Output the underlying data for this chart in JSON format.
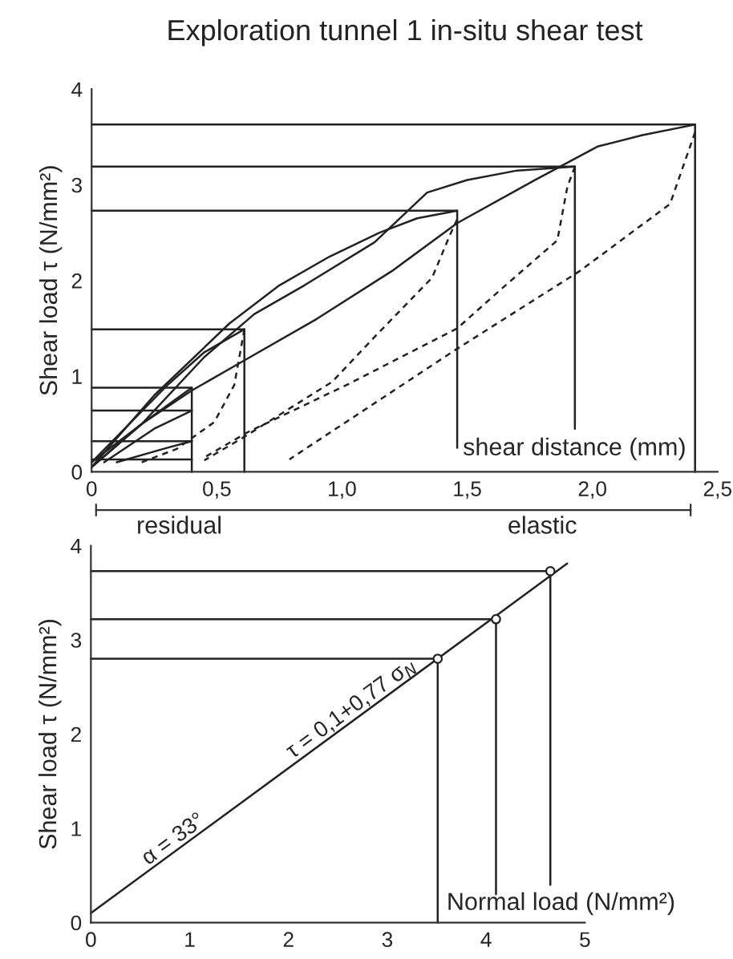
{
  "chart_data": [
    {
      "type": "line",
      "title": "Exploration tunnel 1 in-situ shear test",
      "xlabel": "shear distance (mm)",
      "ylabel": "Shear load τ (N/mm²)",
      "xlim": [
        0,
        2.5
      ],
      "ylim": [
        0,
        4
      ],
      "xticks": [
        0,
        {
          "value": 0.5,
          "label": "0,5"
        },
        {
          "value": 1.0,
          "label": "1,0"
        },
        {
          "value": 1.5,
          "label": "1,5"
        },
        {
          "value": 2.0,
          "label": "2,0"
        },
        {
          "value": 2.5,
          "label": "2,5"
        }
      ],
      "yticks": [
        0,
        1,
        2,
        3,
        4
      ],
      "annotations": [
        "residual",
        "elastic"
      ],
      "series": [
        {
          "line_style": "solid",
          "color": "#222222",
          "x": [
            0,
            2.41,
            2.41
          ],
          "values": [
            3.63,
            3.63,
            0
          ]
        },
        {
          "type": "line",
          "line_style": "solid",
          "color": "#222222",
          "x": [
            0,
            1.93,
            1.93
          ],
          "values": [
            3.19,
            3.19,
            0.45
          ]
        },
        {
          "type": "line",
          "line_style": "solid",
          "color": "#222222",
          "x": [
            0,
            1.46,
            1.46
          ],
          "values": [
            2.73,
            2.73,
            0.25
          ]
        },
        {
          "type": "line",
          "line_style": "solid",
          "color": "#222222",
          "x": [
            0,
            0.61,
            0.61
          ],
          "values": [
            1.49,
            1.49,
            0
          ]
        },
        {
          "type": "line",
          "line_style": "solid",
          "color": "#222222",
          "x": [
            0,
            0.4,
            0.4
          ],
          "values": [
            0.88,
            0.88,
            0
          ]
        },
        {
          "type": "line",
          "line_style": "solid",
          "color": "#222222",
          "x": [
            0,
            0.4
          ],
          "values": [
            0.64,
            0.64
          ]
        },
        {
          "type": "line",
          "line_style": "solid",
          "color": "#222222",
          "x": [
            0,
            0.4
          ],
          "values": [
            0.32,
            0.32
          ]
        },
        {
          "type": "line",
          "line_style": "solid",
          "color": "#222222",
          "x": [
            0,
            0.4
          ],
          "values": [
            0.13,
            0.13
          ]
        },
        {
          "type": "line",
          "line_style": "solid",
          "color": "#222222",
          "x": [
            0,
            0.2,
            0.4,
            0.6,
            0.9,
            1.2,
            1.46,
            1.77,
            2.02,
            2.2,
            2.41
          ],
          "values": [
            0.05,
            0.5,
            0.85,
            1.15,
            1.6,
            2.1,
            2.6,
            3.05,
            3.4,
            3.52,
            3.63
          ]
        },
        {
          "type": "line",
          "line_style": "solid",
          "color": "#222222",
          "x": [
            0,
            0.2,
            0.45,
            0.65,
            0.85,
            1.13,
            1.34,
            1.5,
            1.7,
            1.93
          ],
          "values": [
            0.1,
            0.5,
            1.2,
            1.65,
            1.95,
            2.4,
            2.92,
            3.05,
            3.15,
            3.19
          ]
        },
        {
          "type": "line",
          "line_style": "solid",
          "color": "#222222",
          "x": [
            0,
            0.25,
            0.55,
            0.75,
            0.95,
            1.15,
            1.3,
            1.46
          ],
          "values": [
            0.05,
            0.8,
            1.55,
            1.95,
            2.25,
            2.5,
            2.65,
            2.73
          ]
        },
        {
          "type": "line",
          "line_style": "solid",
          "color": "#222222",
          "x": [
            0,
            0.15,
            0.3,
            0.45,
            0.61
          ],
          "values": [
            0.1,
            0.5,
            0.9,
            1.25,
            1.49
          ]
        },
        {
          "type": "line",
          "line_style": "solid",
          "color": "#222222",
          "x": [
            0,
            0.2,
            0.4
          ],
          "values": [
            0.05,
            0.5,
            0.88
          ]
        },
        {
          "type": "line",
          "line_style": "solid",
          "color": "#222222",
          "x": [
            0.05,
            0.25,
            0.4
          ],
          "values": [
            0.1,
            0.45,
            0.64
          ]
        },
        {
          "type": "line",
          "line_style": "solid",
          "color": "#222222",
          "x": [
            0.1,
            0.3,
            0.4
          ],
          "values": [
            0.1,
            0.25,
            0.32
          ]
        },
        {
          "type": "line",
          "line_style": "dashed",
          "color": "#222222",
          "x": [
            2.41,
            2.31,
            1.95,
            1.45,
            0.79
          ],
          "values": [
            3.55,
            2.8,
            2.1,
            1.27,
            0.13
          ]
        },
        {
          "type": "line",
          "line_style": "dashed",
          "color": "#222222",
          "x": [
            1.93,
            1.9,
            1.86,
            1.64,
            1.46,
            1.02,
            0.62,
            0.45
          ],
          "values": [
            3.19,
            2.98,
            2.42,
            1.92,
            1.5,
            0.91,
            0.41,
            0.15
          ]
        },
        {
          "type": "line",
          "line_style": "dashed",
          "color": "#222222",
          "x": [
            1.46,
            1.43,
            1.36,
            1.13,
            0.96,
            0.6,
            0.45
          ],
          "values": [
            2.64,
            2.47,
            2.03,
            1.41,
            0.94,
            0.35,
            0.12
          ]
        },
        {
          "type": "line",
          "line_style": "dashed",
          "color": "#222222",
          "x": [
            0.61,
            0.57,
            0.49,
            0.34,
            0.2
          ],
          "values": [
            1.49,
            0.91,
            0.52,
            0.24,
            0.1
          ]
        }
      ]
    },
    {
      "type": "line",
      "xlabel": "Normal load (N/mm²)",
      "ylabel": "Shear load τ (N/mm²)",
      "xlim": [
        0,
        5
      ],
      "ylim": [
        0,
        4
      ],
      "xticks": [
        0,
        1,
        2,
        3,
        4,
        5
      ],
      "yticks": [
        0,
        1,
        2,
        3,
        4
      ],
      "annotations": [
        {
          "text": "α = 33°",
          "x": 0.9,
          "y": 0.79
        },
        {
          "text": "τ = 0,1+0,77 σ$_{N}$",
          "x": 2.7,
          "y": 2.18
        }
      ],
      "series": [
        {
          "type": "line",
          "line_style": "solid",
          "color": "#222222",
          "x": [
            0,
            3.51,
            3.51
          ],
          "values": [
            2.8,
            2.8,
            0
          ]
        },
        {
          "type": "line",
          "line_style": "solid",
          "color": "#222222",
          "x": [
            0,
            4.1,
            4.1
          ],
          "values": [
            3.22,
            3.22,
            0.3
          ]
        },
        {
          "type": "line",
          "line_style": "solid",
          "color": "#222222",
          "x": [
            0,
            4.65,
            4.65
          ],
          "values": [
            3.73,
            3.73,
            0.4
          ]
        },
        {
          "type": "line",
          "line_style": "solid",
          "color": "#222222",
          "x": [
            0,
            4.82
          ],
          "values": [
            0.1,
            3.81
          ]
        },
        {
          "type": "scatter",
          "marker": "circle",
          "color": "#222222",
          "x": [
            3.51,
            4.1,
            4.65
          ],
          "values": [
            2.8,
            3.22,
            3.73
          ]
        }
      ]
    }
  ]
}
